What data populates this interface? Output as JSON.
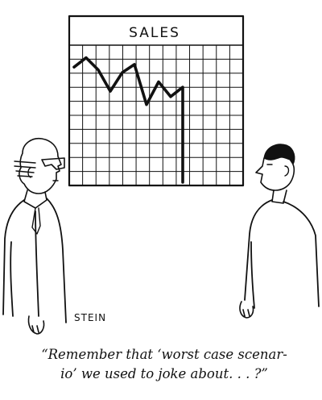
{
  "board": {
    "title": "SALES"
  },
  "chart_data": {
    "type": "line",
    "title": "SALES",
    "xlabel": "",
    "ylabel": "",
    "grid": true,
    "x": [
      0,
      1,
      2,
      3,
      4,
      5,
      6,
      7,
      8,
      9,
      10
    ],
    "values": [
      0.86,
      0.93,
      0.84,
      0.68,
      0.82,
      0.88,
      0.58,
      0.75,
      0.64,
      0.71,
      0.0
    ],
    "ylim": [
      0,
      1
    ]
  },
  "signature": "STEIN",
  "caption": {
    "line1": "“Remember that ‘worst case scenar-",
    "line2": "io’ we used to joke about. . . ?”"
  },
  "colors": {
    "ink": "#111111",
    "paper": "#ffffff"
  }
}
